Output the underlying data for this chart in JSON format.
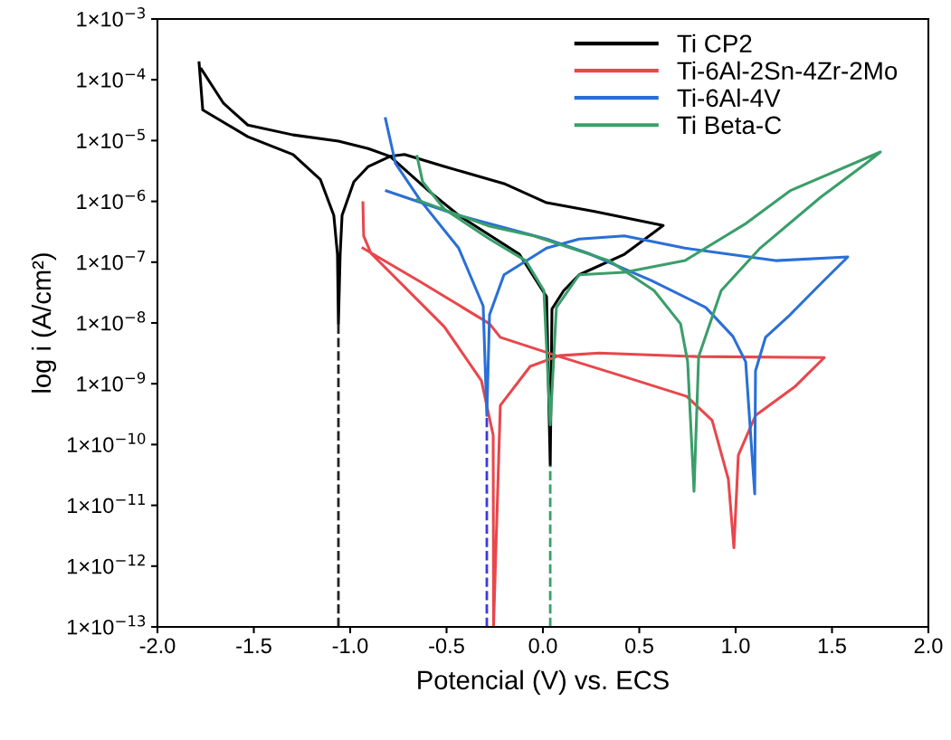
{
  "chart_data": {
    "type": "line",
    "xlabel": "Potencial (V) vs. ECS",
    "ylabel": "log i (A/cm²)",
    "log": "y",
    "xlim": [
      -2.0,
      2.0
    ],
    "ylim": [
      1e-13,
      0.001
    ],
    "xticks": [
      {
        "value": -2.0,
        "label": "-2.0"
      },
      {
        "value": -1.5,
        "label": "-1.5"
      },
      {
        "value": -1.0,
        "label": "-1.0"
      },
      {
        "value": -0.5,
        "label": "-0.5"
      },
      {
        "value": 0.0,
        "label": "0.0"
      },
      {
        "value": 0.5,
        "label": "0.5"
      },
      {
        "value": 1.0,
        "label": "1.0"
      },
      {
        "value": 1.5,
        "label": "1.5"
      },
      {
        "value": 2.0,
        "label": "2.0"
      }
    ],
    "yticks": [
      {
        "value": 1e-13,
        "label": "1×10$^{−13}$"
      },
      {
        "value": 1e-12,
        "label": "1×10$^{−12}$"
      },
      {
        "value": 1e-11,
        "label": "1×10$^{−11}$"
      },
      {
        "value": 1e-10,
        "label": "1×10$^{−10}$"
      },
      {
        "value": 1e-09,
        "label": "1×10$^{−9}$"
      },
      {
        "value": 1e-08,
        "label": "1×10$^{−8}$"
      },
      {
        "value": 1e-07,
        "label": "1×10$^{−7}$"
      },
      {
        "value": 1e-06,
        "label": "1×10$^{−6}$"
      },
      {
        "value": 1e-05,
        "label": "1×10$^{−5}$"
      },
      {
        "value": 0.0001,
        "label": "1×10$^{−4}$"
      },
      {
        "value": 0.001,
        "label": "1×10$^{−3}$"
      }
    ],
    "grid": false,
    "legend": "top right",
    "marker": "none",
    "line_style": "solid",
    "series": [
      {
        "name": "Ti CP2",
        "color": "#000000",
        "x": [
          -1.784,
          -1.765,
          -1.531,
          -1.296,
          -1.155,
          -1.085,
          -1.066,
          -1.061,
          -1.052,
          -1.042,
          -0.981,
          -0.906,
          -0.793,
          -0.718,
          -0.512,
          -0.202,
          0.019,
          0.268,
          0.624,
          0.423,
          0.188,
          0.108,
          0.047,
          0.038,
          0.019,
          -0.122,
          -0.437,
          -0.592,
          -0.793,
          -0.906,
          -1.061,
          -1.296,
          -1.531,
          -1.657,
          -1.772
        ],
        "values": [
          0.00019,
          3.2e-05,
          1.16e-05,
          5.9e-06,
          2.3e-06,
          5.9e-07,
          1.35e-07,
          9.7e-09,
          1.35e-07,
          5.9e-07,
          2.1e-06,
          3.75e-06,
          5.5e-06,
          5.9e-06,
          3.75e-06,
          1.96e-06,
          9.5e-07,
          6.8e-07,
          4e-07,
          1.35e-07,
          6.2e-08,
          3.4e-08,
          1.7e-08,
          4.5e-11,
          2.7e-08,
          1.35e-07,
          5.9e-07,
          1.48e-06,
          5.5e-06,
          7.4e-06,
          9.8e-06,
          1.24e-05,
          1.8e-05,
          4.1e-05,
          0.00015
        ]
      },
      {
        "name": "Ti-6Al-2Sn-4Zr-2Mo",
        "color": "#e8474c",
        "x": [
          -0.934,
          -0.93,
          -0.892,
          -0.512,
          -0.319,
          -0.258,
          -0.256,
          -0.221,
          -0.066,
          0.085,
          0.291,
          0.798,
          1.46,
          1.31,
          1.103,
          1.014,
          0.991,
          0.962,
          0.878,
          0.746,
          0.418,
          0.085,
          -0.221,
          -0.277,
          -0.638,
          -0.934
        ],
        "values": [
          9.5e-07,
          2.7e-07,
          1.4e-07,
          8.7e-09,
          1.12e-09,
          1.43e-10,
          1.05e-13,
          4.4e-10,
          1.93e-09,
          2.9e-09,
          3.2e-09,
          2.8e-09,
          2.7e-09,
          9.1e-10,
          3e-10,
          6.7e-11,
          2e-12,
          2.7e-11,
          2.5e-10,
          6.2e-10,
          1.32e-09,
          2.8e-09,
          5.8e-09,
          9.7e-09,
          4.8e-08,
          1.7e-07
        ]
      },
      {
        "name": "Ti-6Al-4V",
        "color": "#2a6fd6",
        "x": [
          -0.817,
          -0.765,
          -0.638,
          -0.437,
          -0.31,
          -0.291,
          -0.277,
          -0.202,
          0.019,
          0.188,
          0.423,
          0.737,
          1.207,
          1.582,
          1.441,
          1.282,
          1.155,
          1.103,
          1.099,
          1.052,
          0.986,
          0.845,
          0.563,
          0.235,
          0.019,
          -0.437,
          -0.812
        ],
        "values": [
          2.3e-05,
          4.2e-06,
          1.06e-06,
          1.7e-07,
          1.9e-08,
          3e-10,
          1.36e-08,
          6.2e-08,
          1.7e-07,
          2.4e-07,
          2.7e-07,
          1.7e-07,
          1.06e-07,
          1.22e-07,
          4.4e-08,
          1.36e-08,
          5.8e-09,
          1.63e-09,
          1.54e-11,
          2.3e-09,
          6e-09,
          1.8e-08,
          5e-08,
          1.4e-07,
          2.4e-07,
          5.9e-07,
          1.49e-06
        ]
      },
      {
        "name": "Ti Beta-C",
        "color": "#3a9e6a",
        "x": [
          -0.653,
          -0.624,
          -0.512,
          -0.277,
          -0.089,
          0.005,
          0.038,
          0.07,
          0.188,
          0.423,
          0.737,
          1.047,
          1.282,
          1.751,
          1.676,
          1.441,
          1.127,
          0.925,
          0.808,
          0.784,
          0.751,
          0.714,
          0.577,
          0.343,
          -0.047,
          -0.277,
          -0.653
        ],
        "values": [
          5.5e-06,
          2.1e-06,
          7.5e-07,
          2.4e-07,
          1.06e-07,
          3.4e-08,
          2.1e-10,
          1.8e-08,
          6.2e-08,
          6.8e-08,
          1.06e-07,
          4.2e-07,
          1.49e-06,
          6.5e-06,
          4.2e-06,
          1.17e-06,
          1.7e-07,
          3.4e-08,
          2.8e-09,
          1.7e-11,
          2.3e-09,
          9.7e-09,
          3.4e-08,
          1.06e-07,
          2.7e-07,
          3.9e-07,
          1.06e-06
        ]
      }
    ],
    "ref_lines": [
      {
        "axis": "x",
        "value": -1.061,
        "color": "#222222",
        "line_style": "dashed"
      },
      {
        "axis": "x",
        "value": -0.291,
        "color": "#3a3ae0",
        "line_style": "dashed"
      },
      {
        "axis": "x",
        "value": 0.038,
        "color": "#3a9e6a",
        "line_style": "dashed"
      }
    ]
  }
}
